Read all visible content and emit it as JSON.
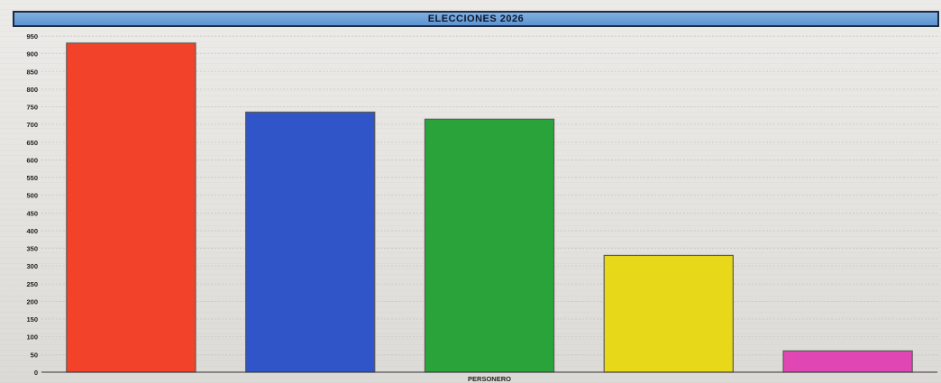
{
  "title": "ELECCIONES 2026",
  "chart_data": {
    "type": "bar",
    "title": "ELECCIONES 2026",
    "xlabel": "PERSONERO",
    "ylabel": "",
    "ylim": [
      0,
      950
    ],
    "yticks": [
      0,
      50,
      100,
      150,
      200,
      250,
      300,
      350,
      400,
      450,
      500,
      550,
      600,
      650,
      700,
      750,
      800,
      850,
      900,
      950
    ],
    "categories": [
      "",
      "",
      "",
      "",
      ""
    ],
    "values": [
      930,
      735,
      715,
      330,
      60
    ],
    "colors": [
      "#f2432a",
      "#2f55c8",
      "#2aa33a",
      "#e8d81a",
      "#e046b4"
    ],
    "grid": true,
    "legend": "none"
  }
}
